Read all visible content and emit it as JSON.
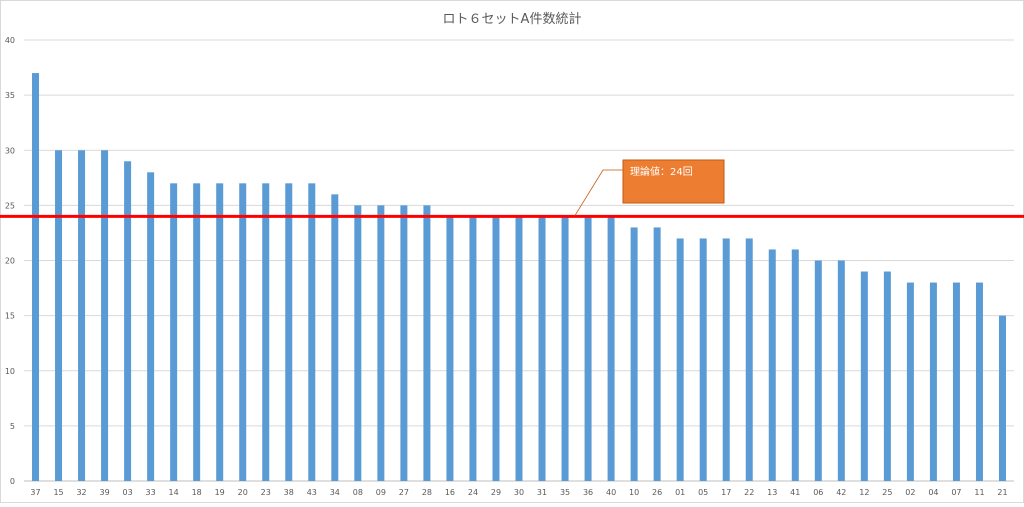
{
  "chart_data": {
    "type": "bar",
    "title": "ロト６セットA件数統計",
    "categories": [
      "37",
      "15",
      "32",
      "39",
      "03",
      "33",
      "14",
      "18",
      "19",
      "20",
      "23",
      "38",
      "43",
      "34",
      "08",
      "09",
      "27",
      "28",
      "16",
      "24",
      "29",
      "30",
      "31",
      "35",
      "36",
      "40",
      "10",
      "26",
      "01",
      "05",
      "17",
      "22",
      "13",
      "41",
      "06",
      "42",
      "12",
      "25",
      "02",
      "04",
      "07",
      "11",
      "21"
    ],
    "values": [
      37,
      30,
      30,
      30,
      29,
      28,
      27,
      27,
      27,
      27,
      27,
      27,
      27,
      26,
      25,
      25,
      25,
      25,
      24,
      24,
      24,
      24,
      24,
      24,
      24,
      24,
      23,
      23,
      22,
      22,
      22,
      22,
      21,
      21,
      20,
      20,
      19,
      19,
      18,
      18,
      18,
      18,
      15
    ],
    "ylim": [
      0,
      40
    ],
    "yticks": [
      0,
      5,
      10,
      15,
      20,
      25,
      30,
      35,
      40
    ],
    "grid": true,
    "bar_color": "#5b9bd5",
    "reference_line": {
      "value": 24,
      "color": "#ff0000"
    },
    "annotation": {
      "text": "理論値：24回",
      "fill": "#ed7d31",
      "border": "#c55a11",
      "text_color": "#ffffff"
    }
  }
}
